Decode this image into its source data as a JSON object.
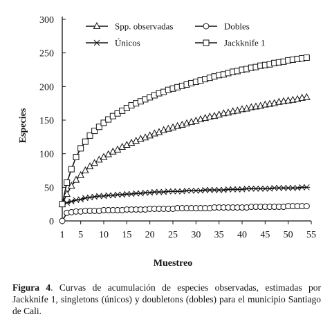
{
  "chart_data": {
    "type": "line",
    "xlabel": "Muestreo",
    "ylabel": "Especies",
    "xlim": [
      1,
      55
    ],
    "ylim": [
      0,
      300
    ],
    "x_ticks": [
      1,
      5,
      10,
      15,
      20,
      25,
      30,
      35,
      40,
      45,
      50,
      55
    ],
    "y_ticks": [
      0,
      50,
      100,
      150,
      200,
      250,
      300
    ],
    "grid": false,
    "legend_placement": "top",
    "series": [
      {
        "name": "Spp. observadas",
        "marker": "triangle",
        "x": [
          1,
          2,
          3,
          4,
          5,
          6,
          7,
          8,
          9,
          10,
          11,
          12,
          13,
          14,
          15,
          16,
          17,
          18,
          19,
          20,
          21,
          22,
          23,
          24,
          25,
          26,
          27,
          28,
          29,
          30,
          31,
          32,
          33,
          34,
          35,
          36,
          37,
          38,
          39,
          40,
          41,
          42,
          43,
          44,
          45,
          46,
          47,
          48,
          49,
          50,
          51,
          52,
          53,
          54
        ],
        "y": [
          25,
          40,
          52,
          61,
          68,
          75,
          81,
          86,
          91,
          95,
          99,
          103,
          106,
          110,
          113,
          116,
          119,
          122,
          124,
          127,
          130,
          132,
          135,
          137,
          139,
          141,
          143,
          145,
          147,
          149,
          151,
          153,
          155,
          156,
          158,
          160,
          161,
          163,
          164,
          166,
          167,
          169,
          170,
          171,
          173,
          174,
          175,
          177,
          178,
          179,
          180,
          181,
          183,
          184
        ]
      },
      {
        "name": "Dobles",
        "marker": "circle",
        "x": [
          1,
          2,
          3,
          4,
          5,
          6,
          7,
          8,
          9,
          10,
          11,
          12,
          13,
          14,
          15,
          16,
          17,
          18,
          19,
          20,
          21,
          22,
          23,
          24,
          25,
          26,
          27,
          28,
          29,
          30,
          31,
          32,
          33,
          34,
          35,
          36,
          37,
          38,
          39,
          40,
          41,
          42,
          43,
          44,
          45,
          46,
          47,
          48,
          49,
          50,
          51,
          52,
          53,
          54
        ],
        "y": [
          0,
          12,
          13,
          14,
          14,
          15,
          15,
          15,
          15,
          16,
          16,
          16,
          16,
          16,
          17,
          17,
          17,
          17,
          17,
          18,
          18,
          18,
          18,
          18,
          18,
          19,
          19,
          19,
          19,
          19,
          19,
          19,
          19,
          20,
          20,
          20,
          20,
          20,
          20,
          20,
          20,
          21,
          21,
          21,
          21,
          21,
          21,
          21,
          21,
          22,
          22,
          22,
          22,
          22
        ]
      },
      {
        "name": "Únicos",
        "marker": "asterisk",
        "x": [
          1,
          2,
          3,
          4,
          5,
          6,
          7,
          8,
          9,
          10,
          11,
          12,
          13,
          14,
          15,
          16,
          17,
          18,
          19,
          20,
          21,
          22,
          23,
          24,
          25,
          26,
          27,
          28,
          29,
          30,
          31,
          32,
          33,
          34,
          35,
          36,
          37,
          38,
          39,
          40,
          41,
          42,
          43,
          44,
          45,
          46,
          47,
          48,
          49,
          50,
          51,
          52,
          53,
          54
        ],
        "y": [
          25,
          27,
          29,
          31,
          32,
          34,
          35,
          36,
          37,
          37,
          38,
          38,
          39,
          39,
          40,
          40,
          41,
          41,
          42,
          42,
          43,
          43,
          43,
          44,
          44,
          44,
          44,
          45,
          45,
          45,
          45,
          46,
          46,
          46,
          46,
          46,
          47,
          47,
          47,
          47,
          48,
          48,
          48,
          48,
          48,
          48,
          49,
          49,
          49,
          49,
          49,
          49,
          50,
          50
        ]
      },
      {
        "name": "Jackknife 1",
        "marker": "square",
        "x": [
          1,
          2,
          3,
          4,
          5,
          6,
          7,
          8,
          9,
          10,
          11,
          12,
          13,
          14,
          15,
          16,
          17,
          18,
          19,
          20,
          21,
          22,
          23,
          24,
          25,
          26,
          27,
          28,
          29,
          30,
          31,
          32,
          33,
          34,
          35,
          36,
          37,
          38,
          39,
          40,
          41,
          42,
          43,
          44,
          45,
          46,
          47,
          48,
          49,
          50,
          51,
          52,
          53,
          54
        ],
        "y": [
          25,
          57,
          77,
          95,
          108,
          118,
          127,
          134,
          140,
          146,
          151,
          156,
          160,
          164,
          168,
          172,
          175,
          178,
          181,
          184,
          187,
          190,
          192,
          195,
          197,
          199,
          201,
          203,
          205,
          207,
          209,
          211,
          213,
          215,
          217,
          218,
          220,
          222,
          223,
          225,
          226,
          228,
          229,
          231,
          232,
          233,
          235,
          236,
          237,
          239,
          240,
          241,
          242,
          243
        ]
      }
    ]
  },
  "caption": {
    "label": "Figura 4",
    "text": ". Curvas de acumulación de especies observadas, estimadas por Jackknife 1, singletons (únicos) y doubletons (dobles) para el municipio Santiago de Cali."
  },
  "colors": {
    "ink": "#111111",
    "background": "#ffffff"
  }
}
